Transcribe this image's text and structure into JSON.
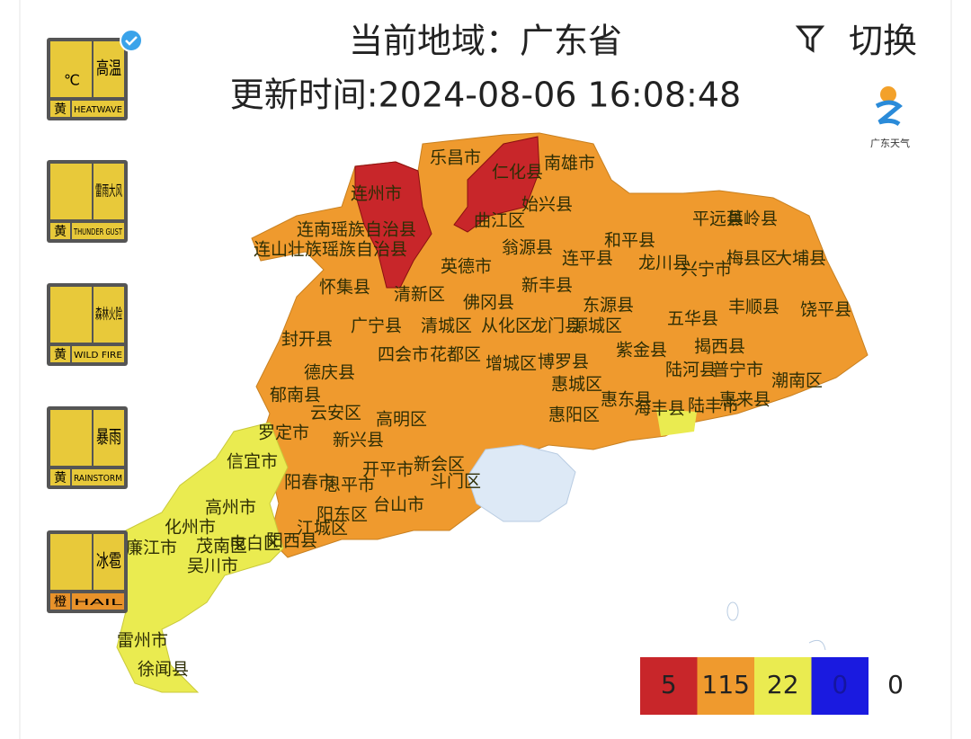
{
  "header": {
    "title": "当前地域：广东省",
    "updated": "更新时间:2024-08-06 16:08:48",
    "switch": "切换",
    "logo": "广东天气"
  },
  "warnings": [
    {
      "name": "高温",
      "symbol": "℃",
      "level": "黄",
      "english": "HEATWAVE"
    },
    {
      "name": "雷雨大风",
      "level": "黄",
      "english": "THUNDER GUST"
    },
    {
      "name": "森林火险",
      "level": "黄",
      "english": "WILD FIRE"
    },
    {
      "name": "暴雨",
      "level": "黄",
      "english": "RAINSTORM"
    },
    {
      "name": "冰雹",
      "level": "橙",
      "english": "HAIL"
    }
  ],
  "map": {
    "labels": [
      "乐昌市",
      "南雄市",
      "仁化县",
      "连州市",
      "始兴县",
      "曲江区",
      "连南瑶族自治县",
      "连山壮族瑶族自治县",
      "翁源县",
      "平远县",
      "蕉岭县",
      "和平县",
      "英德市",
      "连平县",
      "龙川县",
      "兴宁市",
      "梅县区",
      "大埔县",
      "怀集县",
      "清新区",
      "佛冈县",
      "新丰县",
      "东源县",
      "丰顺县",
      "饶平县",
      "广宁县",
      "清城区",
      "从化区",
      "龙门县",
      "源城区",
      "五华县",
      "封开县",
      "四会市",
      "花都区",
      "紫金县",
      "揭西县",
      "博罗县",
      "德庆县",
      "增城区",
      "陆河县",
      "普宁市",
      "潮南区",
      "郁南县",
      "惠城区",
      "惠东县",
      "海丰县",
      "陆丰市",
      "惠来县",
      "云安区",
      "高明区",
      "新兴县",
      "惠阳区",
      "罗定市",
      "信宜市",
      "开平市",
      "新会区",
      "阳春市",
      "恩平市",
      "台山市",
      "斗门区",
      "高州市",
      "化州市",
      "阳东区",
      "江城区",
      "阳西县",
      "廉江市",
      "茂南区",
      "吴川市",
      "电白区",
      "雷州市",
      "徐闻县"
    ]
  },
  "legend": {
    "counts": [
      5,
      115,
      22,
      0
    ],
    "none": 0
  }
}
